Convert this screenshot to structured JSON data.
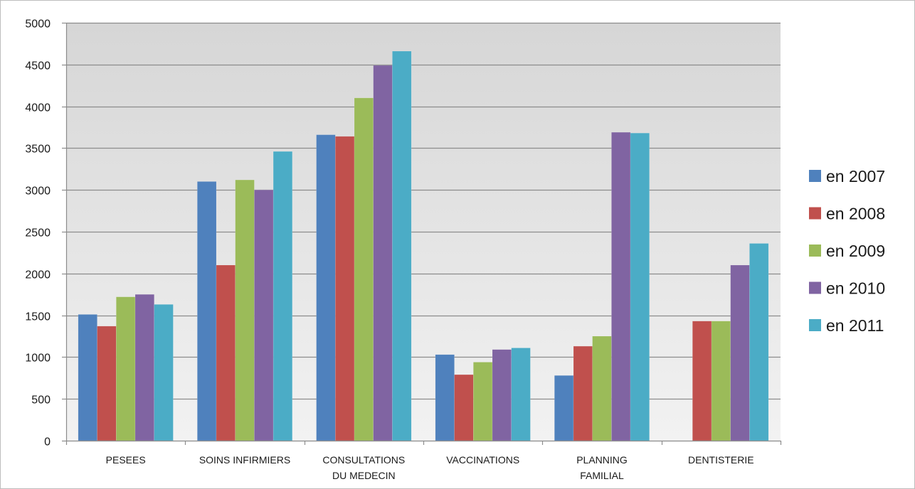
{
  "chart_data": {
    "type": "bar",
    "categories": [
      [
        "PESEES"
      ],
      [
        "SOINS INFIRMIERS"
      ],
      [
        "CONSULTATIONS",
        "DU MEDECIN"
      ],
      [
        "VACCINATIONS"
      ],
      [
        "PLANNING",
        "FAMILIAL"
      ],
      [
        "DENTISTERIE"
      ]
    ],
    "series": [
      {
        "name": "en 2007",
        "color": "#4f81bd",
        "values": [
          1510,
          3100,
          3660,
          1030,
          780,
          0
        ]
      },
      {
        "name": "en 2008",
        "color": "#c0504d",
        "values": [
          1370,
          2100,
          3640,
          790,
          1130,
          1430
        ]
      },
      {
        "name": "en 2009",
        "color": "#9bbb59",
        "values": [
          1720,
          3120,
          4100,
          940,
          1250,
          1430
        ]
      },
      {
        "name": "en 2010",
        "color": "#8064a2",
        "values": [
          1750,
          3000,
          4490,
          1090,
          3690,
          2100
        ]
      },
      {
        "name": "en 2011",
        "color": "#4bacc6",
        "values": [
          1630,
          3460,
          4660,
          1110,
          3680,
          2360
        ]
      }
    ],
    "ylim": [
      0,
      5000
    ],
    "yticks": [
      "0",
      "500",
      "1000",
      "1500",
      "2000",
      "2500",
      "3000",
      "3500",
      "4000",
      "4500",
      "5000"
    ],
    "grid": true,
    "legend_position": "right"
  }
}
